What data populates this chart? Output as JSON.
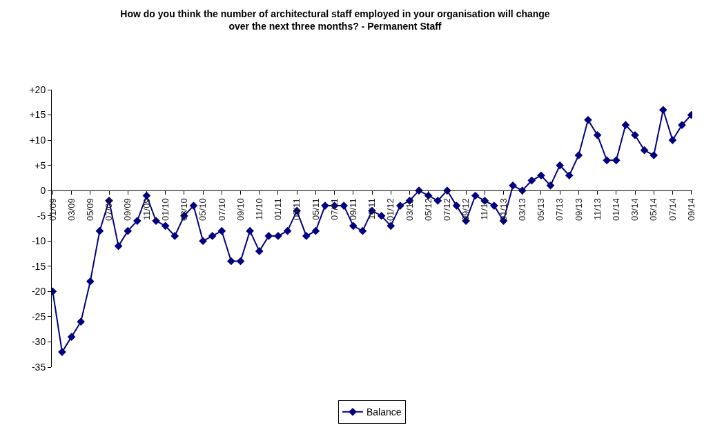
{
  "chart_data": {
    "type": "line",
    "title": "How do you think the number of architectural staff employed in your organisation will change\nover the next three months? - Permanent Staff",
    "categories": [
      "01/09",
      null,
      "03/09",
      null,
      "05/09",
      null,
      "07/09",
      null,
      "09/09",
      null,
      "11/09",
      null,
      "01/10",
      null,
      "03/10",
      null,
      "05/10",
      null,
      "07/10",
      null,
      "09/10",
      null,
      "11/10",
      null,
      "01/11",
      null,
      "03/11",
      null,
      "05/11",
      null,
      "07/11",
      null,
      "09/11",
      null,
      "11/11",
      null,
      "01/12",
      null,
      "03/12",
      null,
      "05/12",
      null,
      "07/12",
      null,
      "09/12",
      null,
      "11/12",
      null,
      "01/13",
      null,
      "03/13",
      null,
      "05/13",
      null,
      "07/13",
      null,
      "09/13",
      null,
      "11/13",
      null,
      "01/14",
      null,
      "03/14",
      null,
      "05/14",
      null,
      "07/14",
      null,
      "09/14"
    ],
    "series": [
      {
        "name": "Balance",
        "color": "#000080",
        "values": [
          -20,
          -32,
          -29,
          -26,
          -18,
          -8,
          -2,
          -11,
          -8,
          -6,
          -1,
          -6,
          -7,
          -9,
          -5,
          -3,
          -10,
          -9,
          -8,
          -14,
          -14,
          -8,
          -12,
          -9,
          -9,
          -8,
          -4,
          -9,
          -8,
          -3,
          -3,
          -3,
          -7,
          -8,
          -4,
          -5,
          -7,
          -3,
          -2,
          0,
          -1,
          -2,
          0,
          -3,
          -6,
          -1,
          -2,
          -3,
          -6,
          1,
          0,
          2,
          3,
          1,
          5,
          3,
          7,
          14,
          11,
          6,
          6,
          13,
          11,
          8,
          7,
          16,
          10,
          13,
          15
        ]
      }
    ],
    "ylim": [
      -35,
      20
    ],
    "yticks": [
      {
        "value": 20,
        "label": "+20"
      },
      {
        "value": 15,
        "label": "+15"
      },
      {
        "value": 10,
        "label": "+10"
      },
      {
        "value": 5,
        "label": "+5"
      },
      0,
      -5,
      -10,
      -15,
      -20,
      -25,
      -30,
      -35
    ],
    "marker": "diamond",
    "line_style": "solid",
    "grid": false,
    "legend": "bottom"
  }
}
